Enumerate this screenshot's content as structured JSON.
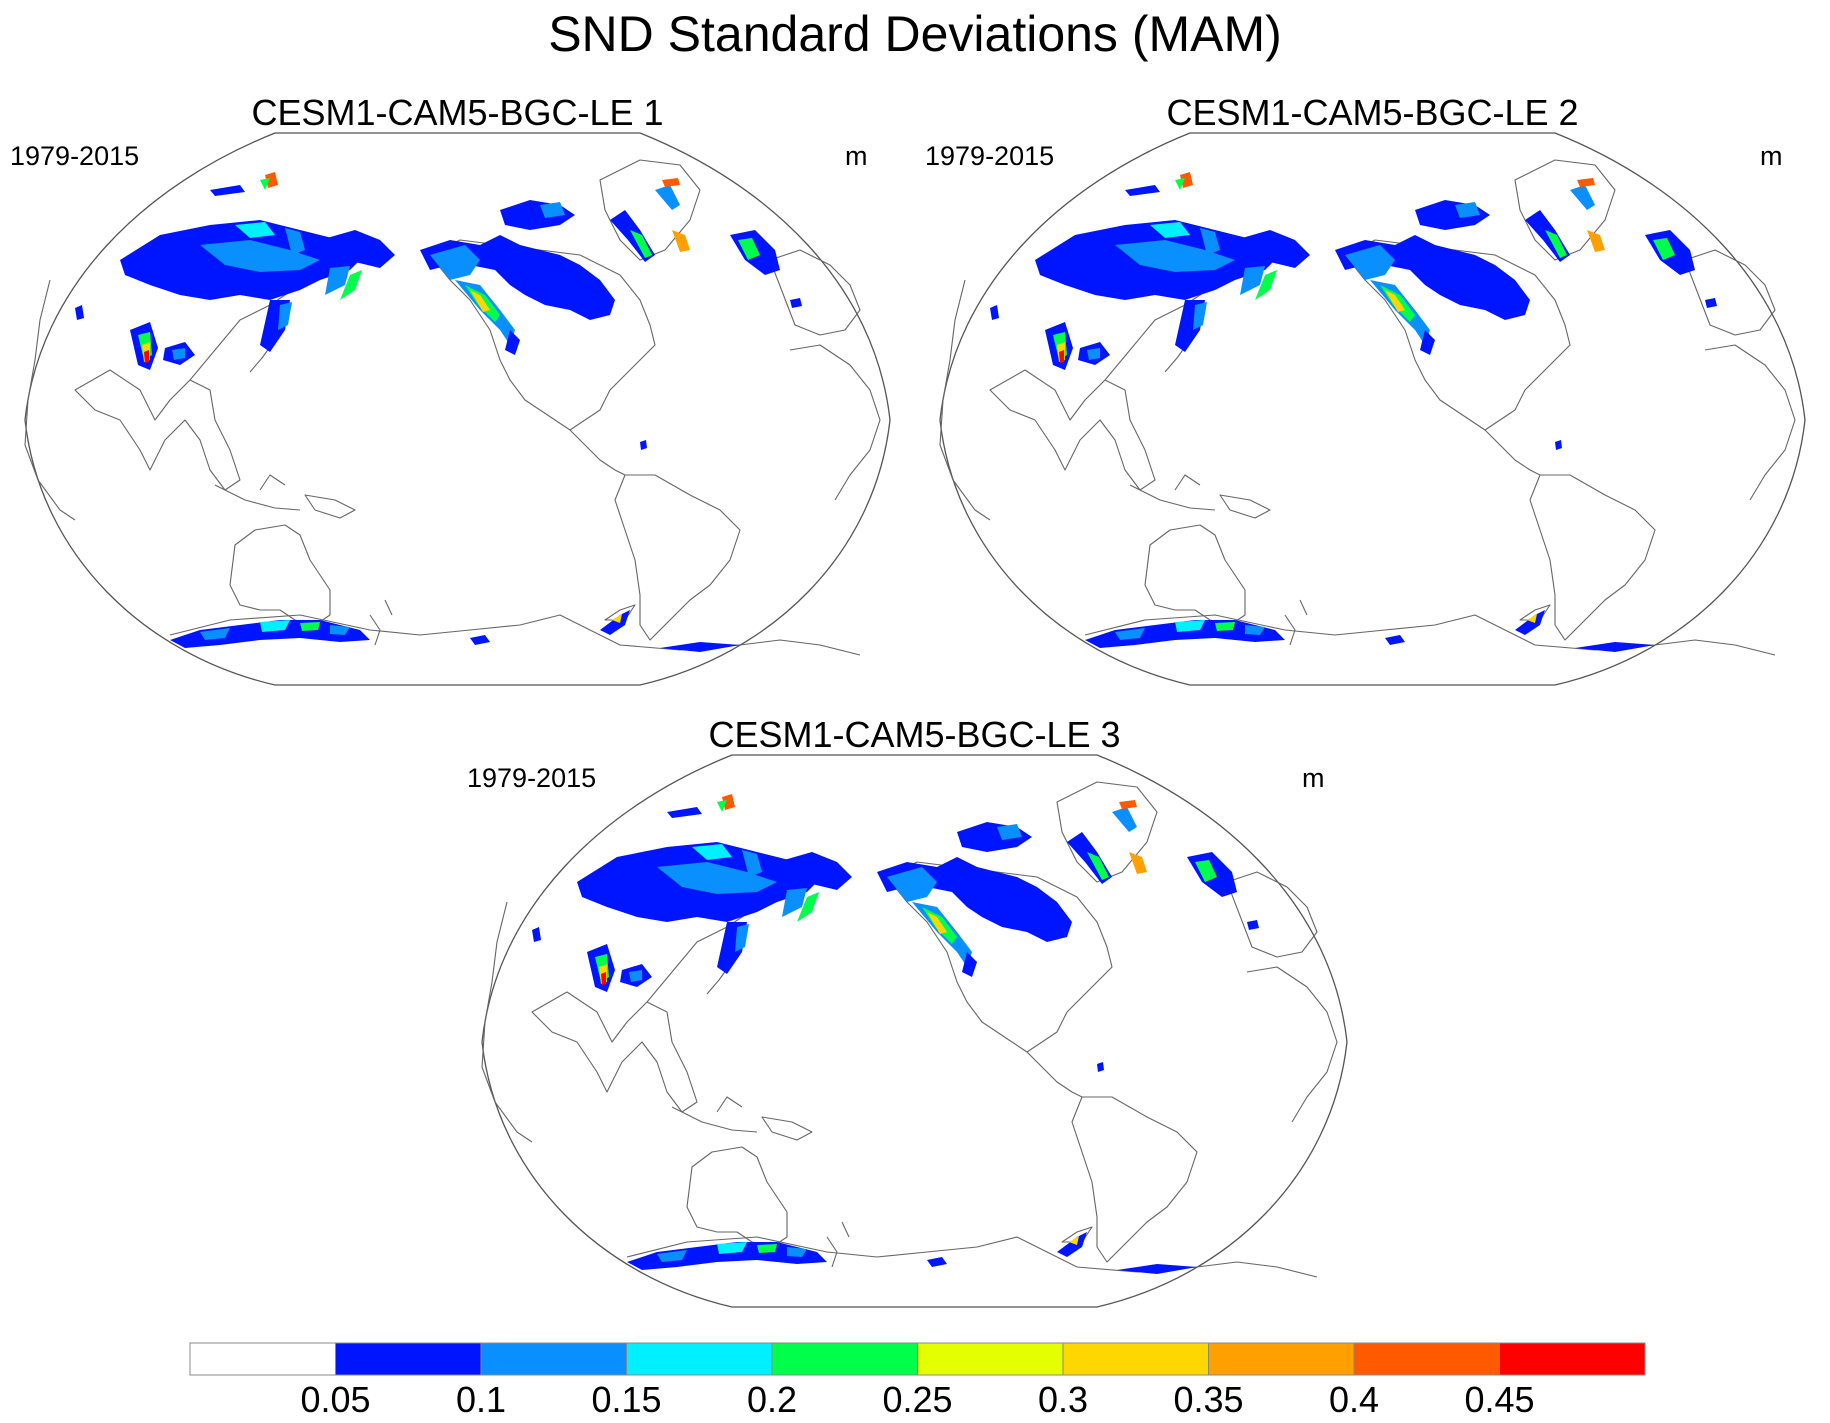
{
  "title": "SND Standard Deviations (MAM)",
  "panels": [
    {
      "title": "CESM1-CAM5-BGC-LE 1",
      "left_label": "1979-2015",
      "right_label": "m"
    },
    {
      "title": "CESM1-CAM5-BGC-LE 2",
      "left_label": "1979-2015",
      "right_label": "m"
    },
    {
      "title": "CESM1-CAM5-BGC-LE 3",
      "left_label": "1979-2015",
      "right_label": "m"
    }
  ],
  "colorbar": {
    "labels": [
      "0.05",
      "0.1",
      "0.15",
      "0.2",
      "0.25",
      "0.3",
      "0.35",
      "0.4",
      "0.45"
    ],
    "colors": [
      "#ffffff",
      "#0015ff",
      "#0a8fff",
      "#00f0ff",
      "#00ff4a",
      "#e4ff00",
      "#ffd700",
      "#ffa000",
      "#ff5a00",
      "#ff0000"
    ]
  }
}
